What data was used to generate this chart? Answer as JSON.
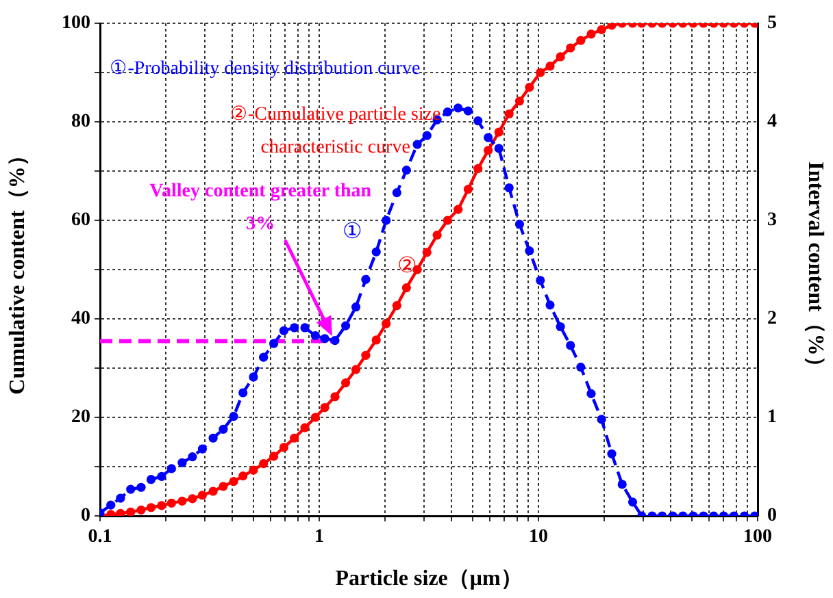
{
  "chart_data": {
    "type": "line",
    "xlabel": "Particle size（μm）",
    "ylabel": "Cumulative content（%）",
    "y2label": "Interval content（%）",
    "log": "x",
    "grid": true,
    "legend": false,
    "marker": "circle",
    "xlim": [
      0.1,
      100
    ],
    "xticks": [
      0.1,
      {
        "value": 0.2,
        "label": null
      },
      {
        "value": 0.3,
        "label": null
      },
      {
        "value": 0.4,
        "label": null
      },
      {
        "value": 0.5,
        "label": null
      },
      {
        "value": 0.6,
        "label": null
      },
      {
        "value": 0.7,
        "label": null
      },
      {
        "value": 0.8,
        "label": null
      },
      {
        "value": 0.9,
        "label": null
      },
      1,
      {
        "value": 2,
        "label": null
      },
      {
        "value": 3,
        "label": null
      },
      {
        "value": 4,
        "label": null
      },
      {
        "value": 5,
        "label": null
      },
      {
        "value": 6,
        "label": null
      },
      {
        "value": 7,
        "label": null
      },
      {
        "value": 8,
        "label": null
      },
      {
        "value": 9,
        "label": null
      },
      10,
      {
        "value": 20,
        "label": null
      },
      {
        "value": 30,
        "label": null
      },
      {
        "value": 40,
        "label": null
      },
      {
        "value": 50,
        "label": null
      },
      {
        "value": 60,
        "label": null
      },
      {
        "value": 70,
        "label": null
      },
      {
        "value": 80,
        "label": null
      },
      {
        "value": 90,
        "label": null
      },
      100
    ],
    "ylim": [
      0,
      100
    ],
    "yticks": [
      0,
      {
        "value": 10,
        "label": null
      },
      20,
      {
        "value": 30,
        "label": null
      },
      40,
      {
        "value": 50,
        "label": null
      },
      60,
      {
        "value": 70,
        "label": null
      },
      80,
      {
        "value": 90,
        "label": null
      },
      100
    ],
    "y2lim": [
      0,
      5
    ],
    "y2ticks": [
      0,
      1,
      2,
      3,
      4,
      5
    ],
    "series": [
      {
        "type": "line",
        "axis": "y2",
        "color": "#0000ff",
        "line_style": "dashed",
        "x": [
          0.1,
          0.112,
          0.124,
          0.138,
          0.154,
          0.171,
          0.191,
          0.212,
          0.237,
          0.264,
          0.293,
          0.328,
          0.365,
          0.407,
          0.449,
          0.501,
          0.557,
          0.62,
          0.69,
          0.77,
          0.86,
          0.96,
          1.06,
          1.18,
          1.32,
          1.47,
          1.63,
          1.82,
          2.02,
          2.26,
          2.5,
          2.8,
          3.1,
          3.45,
          3.85,
          4.3,
          4.78,
          5.3,
          5.9,
          6.6,
          7.35,
          8.2,
          9.1,
          10.2,
          11.3,
          12.6,
          14,
          15.6,
          17.4,
          19.4,
          21.6,
          24.1,
          26.9,
          29.6,
          33,
          36.7,
          41,
          45.6,
          50.8,
          56.6,
          63,
          70,
          78,
          87,
          97
        ],
        "values": [
          0.03,
          0.11,
          0.18,
          0.27,
          0.29,
          0.37,
          0.4,
          0.48,
          0.54,
          0.6,
          0.68,
          0.79,
          0.88,
          1.01,
          1.25,
          1.41,
          1.61,
          1.75,
          1.88,
          1.91,
          1.91,
          1.83,
          1.8,
          1.78,
          1.93,
          2.12,
          2.4,
          2.68,
          3.0,
          3.28,
          3.51,
          3.77,
          3.86,
          4.02,
          4.1,
          4.14,
          4.11,
          4.01,
          3.84,
          3.73,
          3.33,
          2.96,
          2.69,
          2.39,
          2.14,
          1.92,
          1.73,
          1.51,
          1.24,
          0.98,
          0.63,
          0.32,
          0.14,
          0,
          0,
          0,
          0,
          0,
          0,
          0,
          0,
          0,
          0,
          0,
          0
        ]
      },
      {
        "type": "line",
        "axis": "y",
        "color": "#ff0000",
        "line_style": "solid",
        "x": [
          0.1,
          0.112,
          0.124,
          0.138,
          0.154,
          0.171,
          0.191,
          0.212,
          0.237,
          0.264,
          0.293,
          0.328,
          0.365,
          0.407,
          0.449,
          0.501,
          0.557,
          0.62,
          0.69,
          0.77,
          0.86,
          0.96,
          1.06,
          1.18,
          1.32,
          1.47,
          1.63,
          1.82,
          2.02,
          2.26,
          2.5,
          2.8,
          3.1,
          3.45,
          3.85,
          4.3,
          4.78,
          5.3,
          5.9,
          6.6,
          7.35,
          8.2,
          9.1,
          10.2,
          11.3,
          12.6,
          14,
          15.6,
          17.4,
          19.4,
          21.6,
          24.1,
          26.9,
          29.6,
          33,
          36.7,
          41,
          45.6,
          50.8,
          56.6,
          63,
          70,
          78,
          87,
          97,
          100
        ],
        "values": [
          0,
          0.3,
          0.5,
          0.8,
          1.2,
          1.7,
          2.1,
          2.6,
          3.0,
          3.5,
          4.2,
          5,
          6,
          7,
          8.1,
          9.3,
          10.6,
          12.1,
          13.9,
          15.8,
          17.9,
          20,
          22,
          24.2,
          27,
          29.7,
          32.6,
          35.7,
          39,
          42.7,
          46.3,
          50,
          53.5,
          57,
          60,
          62.2,
          66.3,
          70.5,
          74.2,
          77.9,
          81.6,
          84.2,
          87,
          90,
          91.3,
          93.2,
          95,
          96.5,
          97.8,
          98.7,
          99.6,
          100,
          100,
          100,
          100,
          100,
          100,
          100,
          100,
          100,
          100,
          100,
          100,
          100,
          100,
          100
        ]
      },
      {
        "type": "line",
        "axis": "y",
        "color": "#ff00ff",
        "line_style": "dashed",
        "marker": "none",
        "x": [
          0.1,
          1.18
        ],
        "values": [
          35.5,
          35.5
        ]
      }
    ],
    "annotations": [
      "①-Probability density distribution curve",
      "②-Cumulative particle size characteristic curve",
      "Valley content greater than 3%",
      "①",
      "②"
    ]
  }
}
